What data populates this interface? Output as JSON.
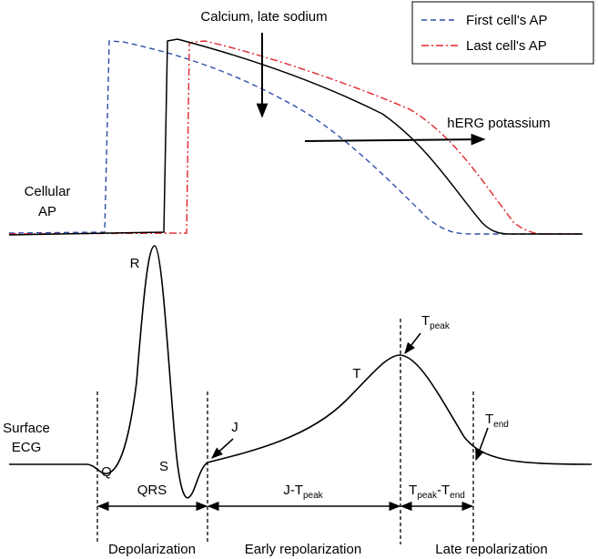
{
  "legend": {
    "items": [
      "First cell's AP",
      "Last cell's AP"
    ]
  },
  "annotations": {
    "calcium": "Calcium, late sodium",
    "herg": "hERG potassium"
  },
  "labels": {
    "cellular_ap": [
      "Cellular",
      "AP"
    ],
    "surface_ecg": [
      "Surface",
      "ECG"
    ],
    "r": "R",
    "q": "Q",
    "s": "S",
    "j": "J",
    "t": "T",
    "t_peak": [
      "T",
      "peak"
    ],
    "t_end": [
      "T",
      "end"
    ]
  },
  "intervals": {
    "qrs": "QRS",
    "j_tpeak": [
      "J-T",
      "peak"
    ],
    "tpeak_tend": [
      "T",
      "peak",
      "-T",
      "end"
    ]
  },
  "phases": [
    "Depolarization",
    "Early repolarization",
    "Late repolarization"
  ]
}
